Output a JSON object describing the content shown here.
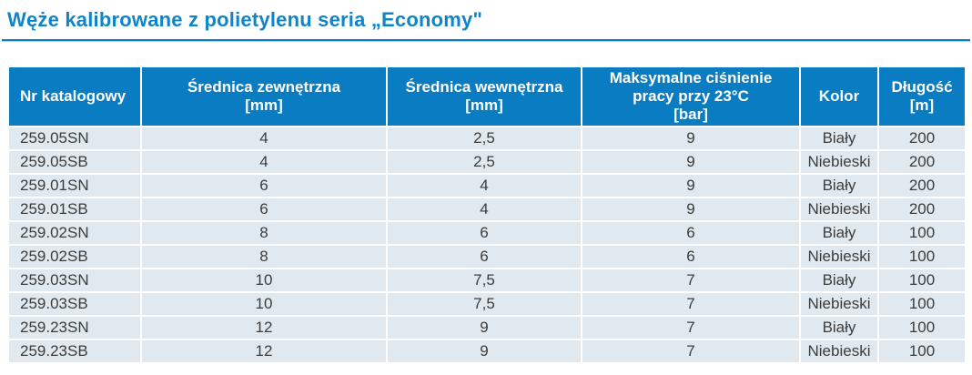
{
  "page": {
    "title": "Węże kalibrowane z polietylenu seria „Economy\"",
    "accent_color": "#0e85c9",
    "header_bg": "#0a7cc2",
    "row_bg": "#dfe9ef",
    "row_text_color": "#3c3c3c"
  },
  "table": {
    "columns": [
      {
        "label": "Nr katalogowy",
        "align": "left"
      },
      {
        "label": "Średnica zewnętrzna\n[mm]",
        "align": "center"
      },
      {
        "label": "Średnica wewnętrzna\n[mm]",
        "align": "center"
      },
      {
        "label": "Maksymalne ciśnienie\npracy przy 23°C\n[bar]",
        "align": "center"
      },
      {
        "label": "Kolor",
        "align": "center"
      },
      {
        "label": "Długość\n[m]",
        "align": "center"
      }
    ],
    "rows": [
      [
        "259.05SN",
        "4",
        "2,5",
        "9",
        "Biały",
        "200"
      ],
      [
        "259.05SB",
        "4",
        "2,5",
        "9",
        "Niebieski",
        "200"
      ],
      [
        "259.01SN",
        "6",
        "4",
        "9",
        "Biały",
        "200"
      ],
      [
        "259.01SB",
        "6",
        "4",
        "9",
        "Niebieski",
        "200"
      ],
      [
        "259.02SN",
        "8",
        "6",
        "6",
        "Biały",
        "100"
      ],
      [
        "259.02SB",
        "8",
        "6",
        "6",
        "Niebieski",
        "100"
      ],
      [
        "259.03SN",
        "10",
        "7,5",
        "7",
        "Biały",
        "100"
      ],
      [
        "259.03SB",
        "10",
        "7,5",
        "7",
        "Niebieski",
        "100"
      ],
      [
        "259.23SN",
        "12",
        "9",
        "7",
        "Biały",
        "100"
      ],
      [
        "259.23SB",
        "12",
        "9",
        "7",
        "Niebieski",
        "100"
      ]
    ]
  }
}
